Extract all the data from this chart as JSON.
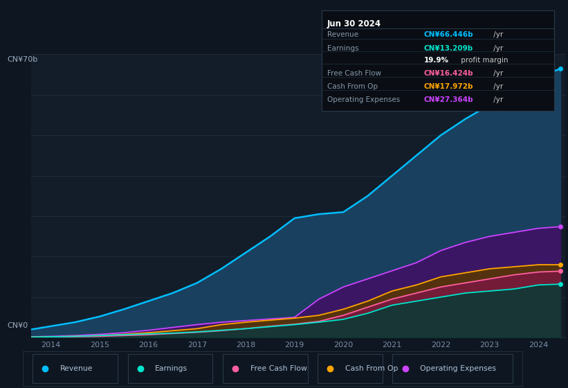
{
  "background_color": "#0e1621",
  "plot_bg_color": "#131d2a",
  "title_box": {
    "date": "Jun 30 2024",
    "rows": [
      {
        "label": "Revenue",
        "value": "CN¥66.446b",
        "unit": " /yr",
        "value_color": "#00bfff"
      },
      {
        "label": "Earnings",
        "value": "CN¥13.209b",
        "unit": " /yr",
        "value_color": "#00e5cc"
      },
      {
        "label": "",
        "value": "19.9%",
        "unit": " profit margin",
        "value_color": "#ffffff"
      },
      {
        "label": "Free Cash Flow",
        "value": "CN¥16.424b",
        "unit": " /yr",
        "value_color": "#ff5fa0"
      },
      {
        "label": "Cash From Op",
        "value": "CN¥17.972b",
        "unit": " /yr",
        "value_color": "#ffa500"
      },
      {
        "label": "Operating Expenses",
        "value": "CN¥27.364b",
        "unit": " /yr",
        "value_color": "#cc44ff"
      }
    ]
  },
  "ylabel_top": "CN¥70b",
  "ylabel_bottom": "CN¥0",
  "ylim": [
    0,
    70
  ],
  "years": [
    2013.6,
    2014,
    2014.5,
    2015,
    2015.5,
    2016,
    2016.5,
    2017,
    2017.5,
    2018,
    2018.5,
    2019,
    2019.5,
    2020,
    2020.5,
    2021,
    2021.5,
    2022,
    2022.5,
    2023,
    2023.5,
    2024,
    2024.45
  ],
  "revenue": [
    2.0,
    2.8,
    3.8,
    5.2,
    7.0,
    9.0,
    11.0,
    13.5,
    17.0,
    21.0,
    25.0,
    29.5,
    30.5,
    31.0,
    35.0,
    40.0,
    45.0,
    50.0,
    54.0,
    57.5,
    61.0,
    64.5,
    66.4
  ],
  "op_expenses": [
    0.2,
    0.3,
    0.5,
    0.8,
    1.2,
    1.8,
    2.5,
    3.2,
    3.8,
    4.2,
    4.6,
    5.0,
    9.5,
    12.5,
    14.5,
    16.5,
    18.5,
    21.5,
    23.5,
    25.0,
    26.0,
    27.0,
    27.4
  ],
  "earnings": [
    0.1,
    0.2,
    0.3,
    0.5,
    0.7,
    0.9,
    1.1,
    1.4,
    1.8,
    2.2,
    2.7,
    3.2,
    3.8,
    4.5,
    6.0,
    8.0,
    9.0,
    10.0,
    11.0,
    11.5,
    12.0,
    13.0,
    13.2
  ],
  "free_cash": [
    0.05,
    0.1,
    0.2,
    0.3,
    0.5,
    0.7,
    1.0,
    1.3,
    1.7,
    2.2,
    2.8,
    3.3,
    4.0,
    5.5,
    7.5,
    9.5,
    11.0,
    12.5,
    13.5,
    14.5,
    15.5,
    16.2,
    16.4
  ],
  "cash_from_op": [
    0.1,
    0.2,
    0.3,
    0.5,
    0.8,
    1.2,
    1.7,
    2.2,
    3.2,
    3.8,
    4.3,
    4.8,
    5.5,
    7.0,
    9.0,
    11.5,
    13.0,
    15.0,
    16.0,
    17.0,
    17.5,
    18.0,
    18.0
  ],
  "revenue_color": "#00bfff",
  "revenue_fill": "#1a4060",
  "earnings_color": "#00e5cc",
  "earnings_fill": "#003d35",
  "free_cash_color": "#ff5fa0",
  "free_cash_fill": "#7a1840",
  "cash_from_op_color": "#ffa500",
  "cash_from_op_fill": "#5a3800",
  "op_exp_color": "#cc44ff",
  "op_exp_fill": "#3d1466",
  "grid_color": "#1e2d3d",
  "tick_color": "#7a8fa8",
  "label_color": "#9badc0",
  "xticks": [
    2014,
    2015,
    2016,
    2017,
    2018,
    2019,
    2020,
    2021,
    2022,
    2023,
    2024
  ],
  "legend_entries": [
    {
      "label": "Revenue",
      "color": "#00bfff"
    },
    {
      "label": "Earnings",
      "color": "#00e5cc"
    },
    {
      "label": "Free Cash Flow",
      "color": "#ff5fa0"
    },
    {
      "label": "Cash From Op",
      "color": "#ffa500"
    },
    {
      "label": "Operating Expenses",
      "color": "#cc44ff"
    }
  ]
}
